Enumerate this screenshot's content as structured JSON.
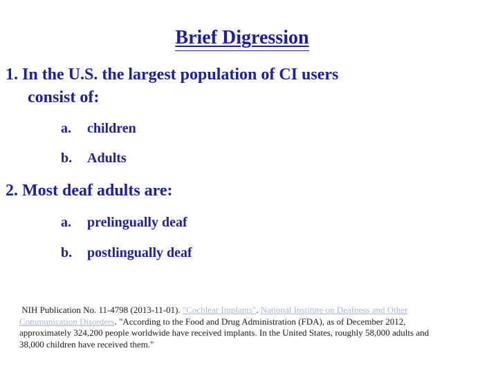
{
  "slide": {
    "title": "Brief Digression",
    "items": [
      {
        "line1": "1. In the U.S. the largest population of CI users",
        "line2": "consist of:",
        "subitems": [
          {
            "marker": "a.",
            "label": "children"
          },
          {
            "marker": "b.",
            "label": "Adults"
          }
        ]
      },
      {
        "line1": "2. Most deaf adults are:",
        "subitems": [
          {
            "marker": "a.",
            "label": "prelingually deaf"
          },
          {
            "marker": "b.",
            "label": "postlingually deaf"
          }
        ]
      }
    ],
    "citation": {
      "line1_prefix": " NIH Publication No. 11-4798 (2013-11-01). ",
      "link1": "\"Cochlear Implants\"",
      "line1_sep": ". ",
      "link2_part1": "National Institute on Deafness and Other",
      "link2_part2": "Communication Disorders",
      "line2_rest": ". \"According to the Food and Drug Administration (FDA), as of December 2012,",
      "line3": "approximately 324,200 people worldwide have received implants. In the United States, roughly 58,000 adults and",
      "line4": "38,000 children have received them.\""
    },
    "colors": {
      "text_blue": "#1d1da8",
      "link": "#aeb4e2",
      "citation_text": "#1a1a1a",
      "background": "#ffffff"
    }
  }
}
